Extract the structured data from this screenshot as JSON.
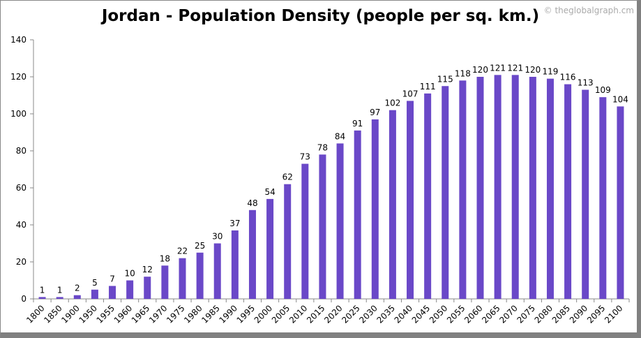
{
  "chart_data": {
    "type": "bar",
    "title": "Jordan - Population Density (people per sq. km.)",
    "watermark": "© theglobalgraph.cm",
    "categories": [
      "1800",
      "1850",
      "1900",
      "1950",
      "1955",
      "1960",
      "1965",
      "1970",
      "1975",
      "1980",
      "1985",
      "1990",
      "1995",
      "2000",
      "2005",
      "2010",
      "2015",
      "2020",
      "2025",
      "2030",
      "2035",
      "2040",
      "2045",
      "2050",
      "2055",
      "2060",
      "2065",
      "2070",
      "2075",
      "2080",
      "2085",
      "2090",
      "2095",
      "2100"
    ],
    "values": [
      1,
      1,
      2,
      5,
      7,
      10,
      12,
      18,
      22,
      25,
      30,
      37,
      48,
      54,
      62,
      73,
      78,
      84,
      91,
      97,
      102,
      107,
      111,
      115,
      118,
      120,
      121,
      121,
      120,
      119,
      116,
      113,
      109,
      104
    ],
    "yticks": [
      0,
      20,
      40,
      60,
      80,
      100,
      120,
      140
    ],
    "ylim": [
      0,
      140
    ],
    "xlabel": "",
    "ylabel": "",
    "grid": false,
    "legend": "none",
    "bar_color": "#6a48c8"
  }
}
